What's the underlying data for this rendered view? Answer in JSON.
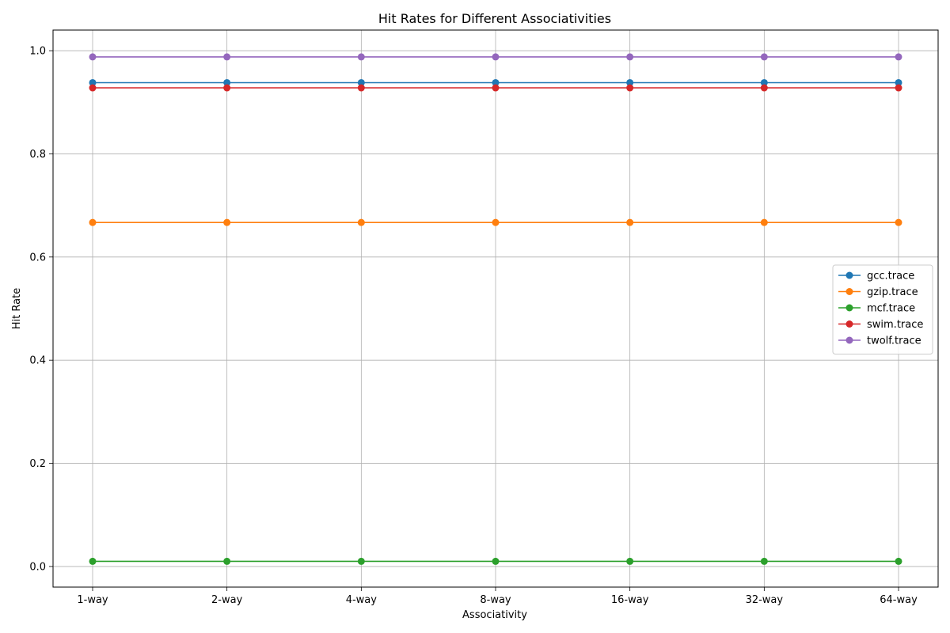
{
  "chart_data": {
    "type": "line",
    "title": "Hit Rates for Different Associativities",
    "xlabel": "Associativity",
    "ylabel": "Hit Rate",
    "categories": [
      "1-way",
      "2-way",
      "4-way",
      "8-way",
      "16-way",
      "32-way",
      "64-way"
    ],
    "ylim": [
      -0.04,
      1.04
    ],
    "yticks": [
      0.0,
      0.2,
      0.4,
      0.6,
      0.8,
      1.0
    ],
    "ytick_labels": [
      "0.0",
      "0.2",
      "0.4",
      "0.6",
      "0.8",
      "1.0"
    ],
    "grid": true,
    "legend_position": "center-right",
    "marker": "circle",
    "series": [
      {
        "name": "gcc.trace",
        "color": "#1f77b4",
        "values": [
          0.938,
          0.938,
          0.938,
          0.938,
          0.938,
          0.938,
          0.938
        ]
      },
      {
        "name": "gzip.trace",
        "color": "#ff7f0e",
        "values": [
          0.667,
          0.667,
          0.667,
          0.667,
          0.667,
          0.667,
          0.667
        ]
      },
      {
        "name": "mcf.trace",
        "color": "#2ca02c",
        "values": [
          0.01,
          0.01,
          0.01,
          0.01,
          0.01,
          0.01,
          0.01
        ]
      },
      {
        "name": "swim.trace",
        "color": "#d62728",
        "values": [
          0.928,
          0.928,
          0.928,
          0.928,
          0.928,
          0.928,
          0.928
        ]
      },
      {
        "name": "twolf.trace",
        "color": "#9467bd",
        "values": [
          0.988,
          0.988,
          0.988,
          0.988,
          0.988,
          0.988,
          0.988
        ]
      }
    ]
  }
}
